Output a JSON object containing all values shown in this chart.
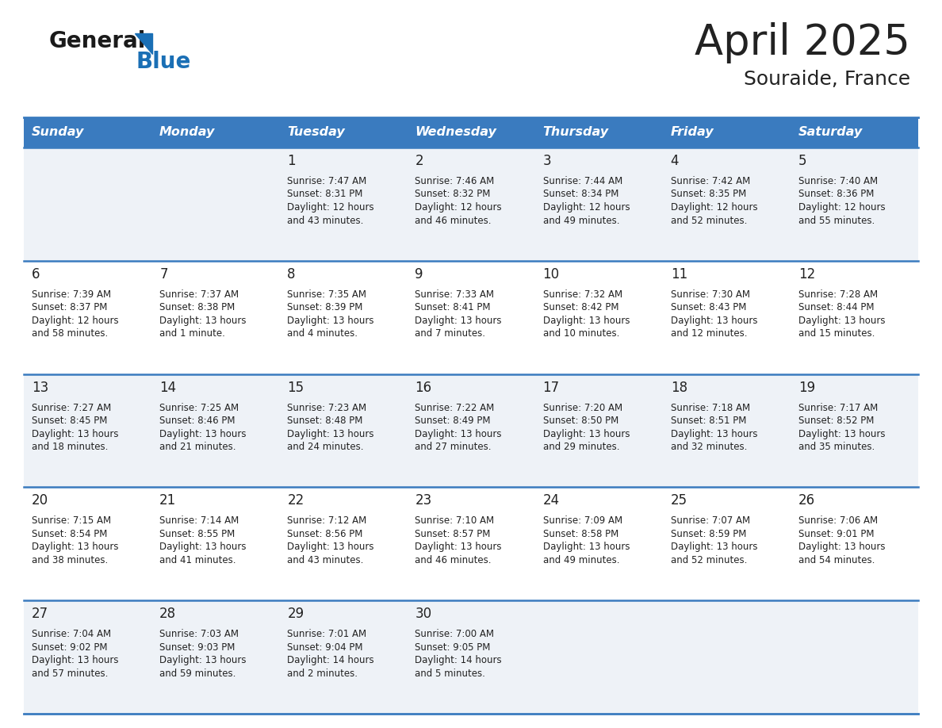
{
  "title": "April 2025",
  "subtitle": "Souraide, France",
  "header_bg_color": "#3a7bbf",
  "header_text_color": "#ffffff",
  "cell_bg_even": "#eef2f7",
  "cell_bg_odd": "#ffffff",
  "row_line_color": "#3a7bbf",
  "text_color": "#222222",
  "days_of_week": [
    "Sunday",
    "Monday",
    "Tuesday",
    "Wednesday",
    "Thursday",
    "Friday",
    "Saturday"
  ],
  "weeks": [
    [
      {
        "day": "",
        "info": ""
      },
      {
        "day": "",
        "info": ""
      },
      {
        "day": "1",
        "info": "Sunrise: 7:47 AM\nSunset: 8:31 PM\nDaylight: 12 hours\nand 43 minutes."
      },
      {
        "day": "2",
        "info": "Sunrise: 7:46 AM\nSunset: 8:32 PM\nDaylight: 12 hours\nand 46 minutes."
      },
      {
        "day": "3",
        "info": "Sunrise: 7:44 AM\nSunset: 8:34 PM\nDaylight: 12 hours\nand 49 minutes."
      },
      {
        "day": "4",
        "info": "Sunrise: 7:42 AM\nSunset: 8:35 PM\nDaylight: 12 hours\nand 52 minutes."
      },
      {
        "day": "5",
        "info": "Sunrise: 7:40 AM\nSunset: 8:36 PM\nDaylight: 12 hours\nand 55 minutes."
      }
    ],
    [
      {
        "day": "6",
        "info": "Sunrise: 7:39 AM\nSunset: 8:37 PM\nDaylight: 12 hours\nand 58 minutes."
      },
      {
        "day": "7",
        "info": "Sunrise: 7:37 AM\nSunset: 8:38 PM\nDaylight: 13 hours\nand 1 minute."
      },
      {
        "day": "8",
        "info": "Sunrise: 7:35 AM\nSunset: 8:39 PM\nDaylight: 13 hours\nand 4 minutes."
      },
      {
        "day": "9",
        "info": "Sunrise: 7:33 AM\nSunset: 8:41 PM\nDaylight: 13 hours\nand 7 minutes."
      },
      {
        "day": "10",
        "info": "Sunrise: 7:32 AM\nSunset: 8:42 PM\nDaylight: 13 hours\nand 10 minutes."
      },
      {
        "day": "11",
        "info": "Sunrise: 7:30 AM\nSunset: 8:43 PM\nDaylight: 13 hours\nand 12 minutes."
      },
      {
        "day": "12",
        "info": "Sunrise: 7:28 AM\nSunset: 8:44 PM\nDaylight: 13 hours\nand 15 minutes."
      }
    ],
    [
      {
        "day": "13",
        "info": "Sunrise: 7:27 AM\nSunset: 8:45 PM\nDaylight: 13 hours\nand 18 minutes."
      },
      {
        "day": "14",
        "info": "Sunrise: 7:25 AM\nSunset: 8:46 PM\nDaylight: 13 hours\nand 21 minutes."
      },
      {
        "day": "15",
        "info": "Sunrise: 7:23 AM\nSunset: 8:48 PM\nDaylight: 13 hours\nand 24 minutes."
      },
      {
        "day": "16",
        "info": "Sunrise: 7:22 AM\nSunset: 8:49 PM\nDaylight: 13 hours\nand 27 minutes."
      },
      {
        "day": "17",
        "info": "Sunrise: 7:20 AM\nSunset: 8:50 PM\nDaylight: 13 hours\nand 29 minutes."
      },
      {
        "day": "18",
        "info": "Sunrise: 7:18 AM\nSunset: 8:51 PM\nDaylight: 13 hours\nand 32 minutes."
      },
      {
        "day": "19",
        "info": "Sunrise: 7:17 AM\nSunset: 8:52 PM\nDaylight: 13 hours\nand 35 minutes."
      }
    ],
    [
      {
        "day": "20",
        "info": "Sunrise: 7:15 AM\nSunset: 8:54 PM\nDaylight: 13 hours\nand 38 minutes."
      },
      {
        "day": "21",
        "info": "Sunrise: 7:14 AM\nSunset: 8:55 PM\nDaylight: 13 hours\nand 41 minutes."
      },
      {
        "day": "22",
        "info": "Sunrise: 7:12 AM\nSunset: 8:56 PM\nDaylight: 13 hours\nand 43 minutes."
      },
      {
        "day": "23",
        "info": "Sunrise: 7:10 AM\nSunset: 8:57 PM\nDaylight: 13 hours\nand 46 minutes."
      },
      {
        "day": "24",
        "info": "Sunrise: 7:09 AM\nSunset: 8:58 PM\nDaylight: 13 hours\nand 49 minutes."
      },
      {
        "day": "25",
        "info": "Sunrise: 7:07 AM\nSunset: 8:59 PM\nDaylight: 13 hours\nand 52 minutes."
      },
      {
        "day": "26",
        "info": "Sunrise: 7:06 AM\nSunset: 9:01 PM\nDaylight: 13 hours\nand 54 minutes."
      }
    ],
    [
      {
        "day": "27",
        "info": "Sunrise: 7:04 AM\nSunset: 9:02 PM\nDaylight: 13 hours\nand 57 minutes."
      },
      {
        "day": "28",
        "info": "Sunrise: 7:03 AM\nSunset: 9:03 PM\nDaylight: 13 hours\nand 59 minutes."
      },
      {
        "day": "29",
        "info": "Sunrise: 7:01 AM\nSunset: 9:04 PM\nDaylight: 14 hours\nand 2 minutes."
      },
      {
        "day": "30",
        "info": "Sunrise: 7:00 AM\nSunset: 9:05 PM\nDaylight: 14 hours\nand 5 minutes."
      },
      {
        "day": "",
        "info": ""
      },
      {
        "day": "",
        "info": ""
      },
      {
        "day": "",
        "info": ""
      }
    ]
  ],
  "logo_text_general": "General",
  "logo_text_blue": "Blue",
  "logo_triangle_color": "#1a6fb5",
  "logo_general_color": "#1a1a1a",
  "fig_width": 11.88,
  "fig_height": 9.18,
  "dpi": 100
}
